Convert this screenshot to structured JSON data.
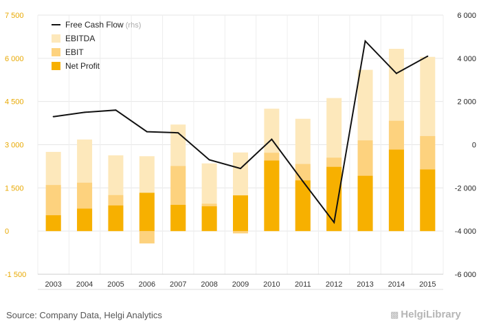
{
  "chart_data": {
    "type": "bar",
    "stacking": "overlay",
    "categories": [
      "2003",
      "2004",
      "2005",
      "2006",
      "2007",
      "2008",
      "2009",
      "2010",
      "2011",
      "2012",
      "2013",
      "2014",
      "2015"
    ],
    "series": [
      {
        "name": "EBITDA",
        "kind": "bar",
        "color": "#fde8bb",
        "values": [
          2750,
          3180,
          2630,
          2600,
          3700,
          2350,
          2730,
          4250,
          3900,
          4620,
          5600,
          6330,
          6050
        ]
      },
      {
        "name": "EBIT",
        "kind": "bar",
        "color": "#fdd27e",
        "values": [
          1600,
          1680,
          1250,
          -430,
          2260,
          950,
          -80,
          2720,
          2330,
          2550,
          3150,
          3830,
          3300
        ]
      },
      {
        "name": "Net Profit",
        "kind": "bar",
        "color": "#f7b000",
        "values": [
          550,
          780,
          890,
          1330,
          910,
          860,
          1240,
          2450,
          1760,
          2230,
          1920,
          2830,
          2140
        ]
      },
      {
        "name": "Free Cash Flow",
        "note": "(rhs)",
        "kind": "line",
        "axis": "right",
        "color": "#111111",
        "values": [
          1300,
          1500,
          1600,
          600,
          550,
          -700,
          -1100,
          250,
          -1700,
          -3600,
          4800,
          3300,
          4100
        ]
      }
    ],
    "left_axis": {
      "ylim": [
        -1500,
        7500
      ],
      "ticks": [
        -1500,
        0,
        1500,
        3000,
        4500,
        6000,
        7500
      ],
      "tick_labels": [
        "-1 500",
        "0",
        "1 500",
        "3 000",
        "4 500",
        "6 000",
        "7 500"
      ],
      "color": "#e8a800"
    },
    "right_axis": {
      "ylim": [
        -6000,
        6000
      ],
      "ticks": [
        -6000,
        -4000,
        -2000,
        0,
        2000,
        4000,
        6000
      ],
      "tick_labels": [
        "-6 000",
        "-4 000",
        "-2 000",
        "0",
        "2 000",
        "4 000",
        "6 000"
      ],
      "color": "#222222"
    },
    "title": "",
    "xlabel": "",
    "ylabel": "",
    "grid": true,
    "legend_position": "top-left",
    "legend_order": [
      "Free Cash Flow",
      "EBITDA",
      "EBIT",
      "Net Profit"
    ]
  },
  "footer": {
    "source": "Source: Company Data, Helgi Analytics",
    "logo_text": "HelgiLibrary"
  }
}
